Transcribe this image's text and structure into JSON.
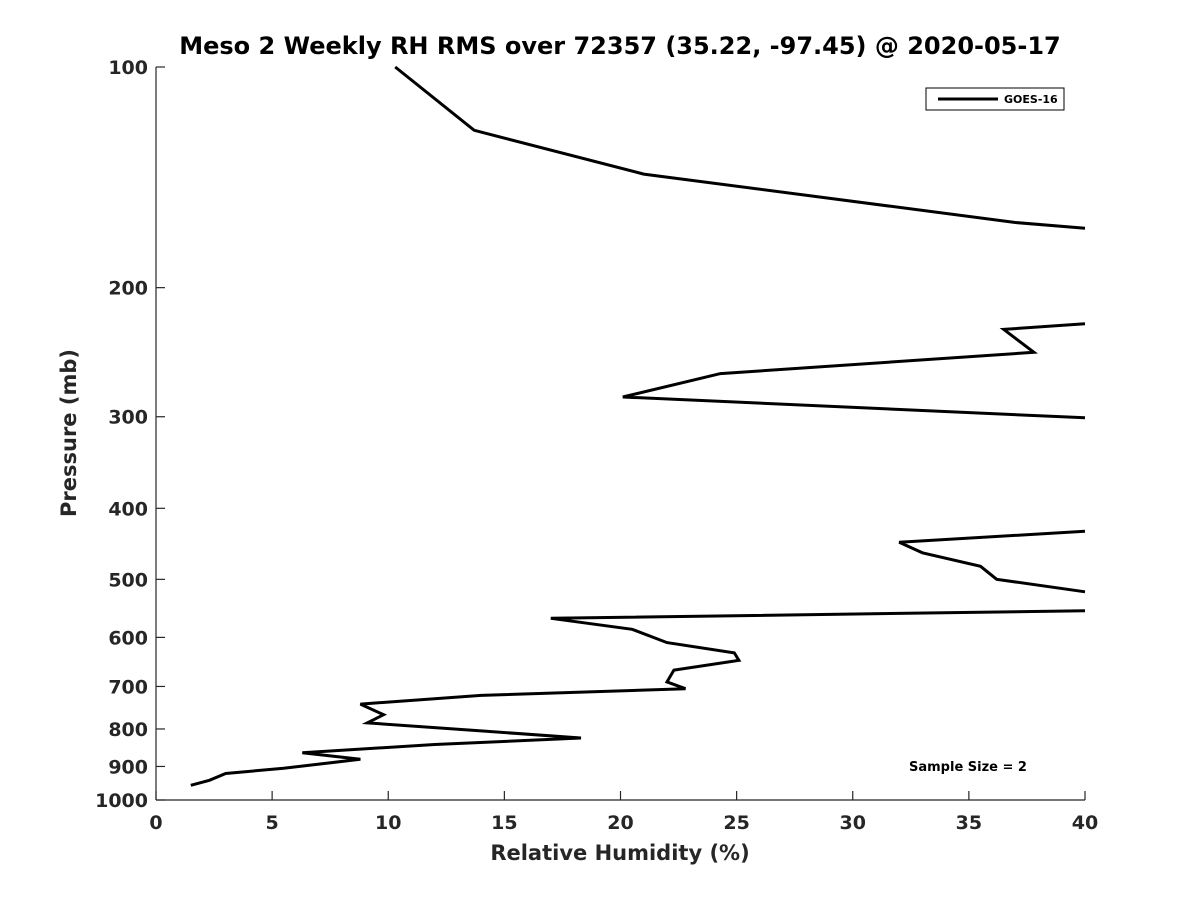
{
  "chart_data": {
    "type": "line",
    "title": "Meso 2 Weekly RH RMS over 72357 (35.22, -97.45) @ 2020-05-17",
    "xlabel": "Relative Humidity (%)",
    "ylabel": "Pressure (mb)",
    "xlim": [
      0,
      40
    ],
    "ylim": [
      100,
      1000
    ],
    "yscale": "log",
    "y_reversed": true,
    "xticks": [
      "0",
      "5",
      "10",
      "15",
      "20",
      "25",
      "30",
      "35",
      "40"
    ],
    "yticks": [
      "100",
      "200",
      "300",
      "400",
      "500",
      "600",
      "700",
      "800",
      "900",
      "1000"
    ],
    "grid": false,
    "legend_position": "top-right",
    "series": [
      {
        "name": "GOES-16",
        "color": "#000000",
        "points": [
          [
            1.5,
            955
          ],
          [
            2.3,
            940
          ],
          [
            3.0,
            920
          ],
          [
            5.5,
            905
          ],
          [
            8.8,
            880
          ],
          [
            6.3,
            862
          ],
          [
            12.0,
            840
          ],
          [
            18.3,
            823
          ],
          [
            14.0,
            805
          ],
          [
            9.1,
            785
          ],
          [
            9.8,
            765
          ],
          [
            8.8,
            740
          ],
          [
            14.0,
            720
          ],
          [
            22.8,
            705
          ],
          [
            22.0,
            690
          ],
          [
            22.3,
            665
          ],
          [
            25.1,
            645
          ],
          [
            24.9,
            630
          ],
          [
            22.0,
            610
          ],
          [
            20.5,
            585
          ],
          [
            17.0,
            565
          ],
          [
            40.0,
            552
          ]
        ]
      },
      {
        "name": "GOES-16",
        "color": "#000000",
        "points": [
          [
            40.0,
            520
          ],
          [
            36.2,
            500
          ],
          [
            35.5,
            480
          ],
          [
            33.0,
            460
          ],
          [
            32.0,
            445
          ],
          [
            40.0,
            430
          ]
        ]
      },
      {
        "name": "GOES-16",
        "color": "#000000",
        "points": [
          [
            40.0,
            301
          ],
          [
            20.1,
            282
          ],
          [
            24.3,
            262
          ],
          [
            37.8,
            245
          ],
          [
            36.5,
            228
          ],
          [
            40.0,
            224
          ]
        ]
      },
      {
        "name": "GOES-16",
        "color": "#000000",
        "points": [
          [
            40.0,
            166
          ],
          [
            37.0,
            163
          ],
          [
            21.0,
            140
          ],
          [
            13.7,
            122
          ],
          [
            10.3,
            100
          ]
        ]
      }
    ],
    "legend": [
      "GOES-16"
    ],
    "annotations": [
      "Sample Size = 2"
    ]
  }
}
